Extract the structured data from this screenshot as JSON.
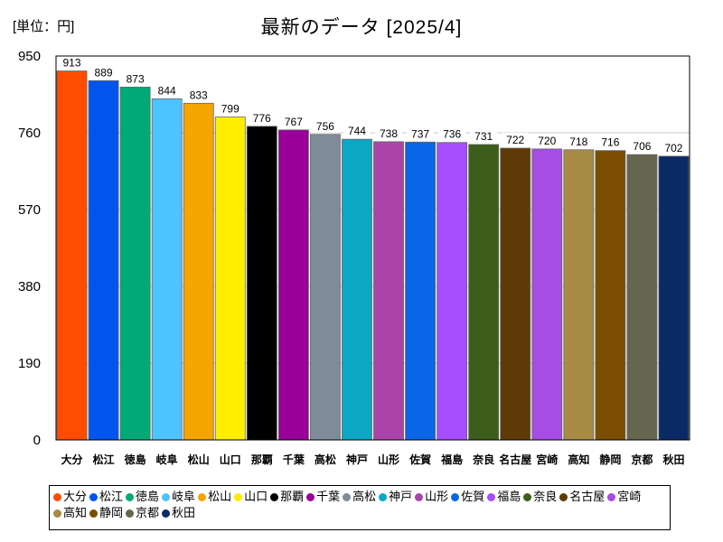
{
  "chart_data": {
    "type": "bar",
    "title": "最新のデータ [2025/4]",
    "unit_label": "[単位：円]",
    "xlabel": "",
    "ylabel": "",
    "ylim": [
      0,
      950
    ],
    "yticks": [
      0,
      190,
      380,
      570,
      760,
      950
    ],
    "grid": true,
    "legend_position": "bottom",
    "categories": [
      "大分",
      "松江",
      "徳島",
      "岐阜",
      "松山",
      "山口",
      "那覇",
      "千葉",
      "高松",
      "神戸",
      "山形",
      "佐賀",
      "福島",
      "奈良",
      "名古屋",
      "宮崎",
      "高知",
      "静岡",
      "京都",
      "秋田"
    ],
    "values": [
      913,
      889,
      873,
      844,
      833,
      799,
      776,
      767,
      756,
      744,
      738,
      737,
      736,
      731,
      722,
      720,
      718,
      716,
      706,
      702
    ],
    "colors": [
      "#ff4c00",
      "#0055ee",
      "#00aa77",
      "#4dc3ff",
      "#f5a500",
      "#ffee00",
      "#000000",
      "#990099",
      "#808b99",
      "#0aa8c4",
      "#aa44aa",
      "#0a66e6",
      "#a64dff",
      "#3d5e1a",
      "#5e3a08",
      "#a64de6",
      "#a88c44",
      "#7a4d00",
      "#666650",
      "#0a2a66"
    ]
  }
}
